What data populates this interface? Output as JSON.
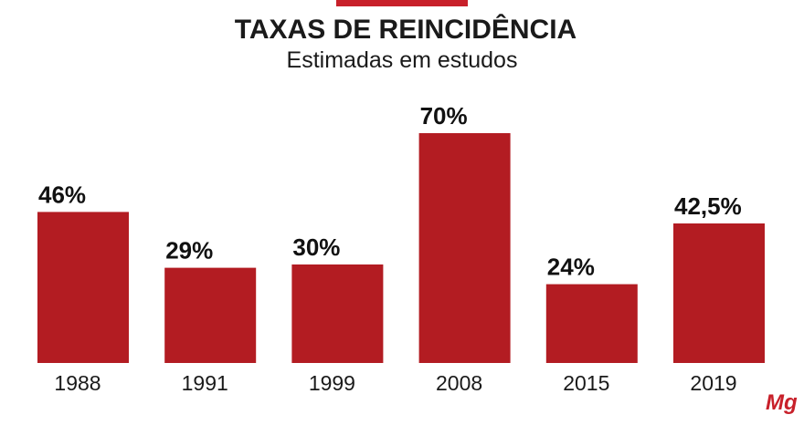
{
  "colors": {
    "bar": "#b31c22",
    "accent": "#c8202a",
    "text": "#1a1a1a"
  },
  "chart_data": {
    "type": "bar",
    "title": "TAXAS DE REINCIDÊNCIA",
    "subtitle": "Estimadas em estudos",
    "categories": [
      "1988",
      "1991",
      "1999",
      "2008",
      "2015",
      "2019"
    ],
    "values": [
      46,
      29,
      30,
      70,
      24,
      42.5
    ],
    "value_labels": [
      "46%",
      "29%",
      "30%",
      "70%",
      "24%",
      "42,5%"
    ],
    "ylim": [
      0,
      100
    ],
    "grid": false,
    "legend": "none"
  },
  "logo": {
    "text": "Mg"
  }
}
